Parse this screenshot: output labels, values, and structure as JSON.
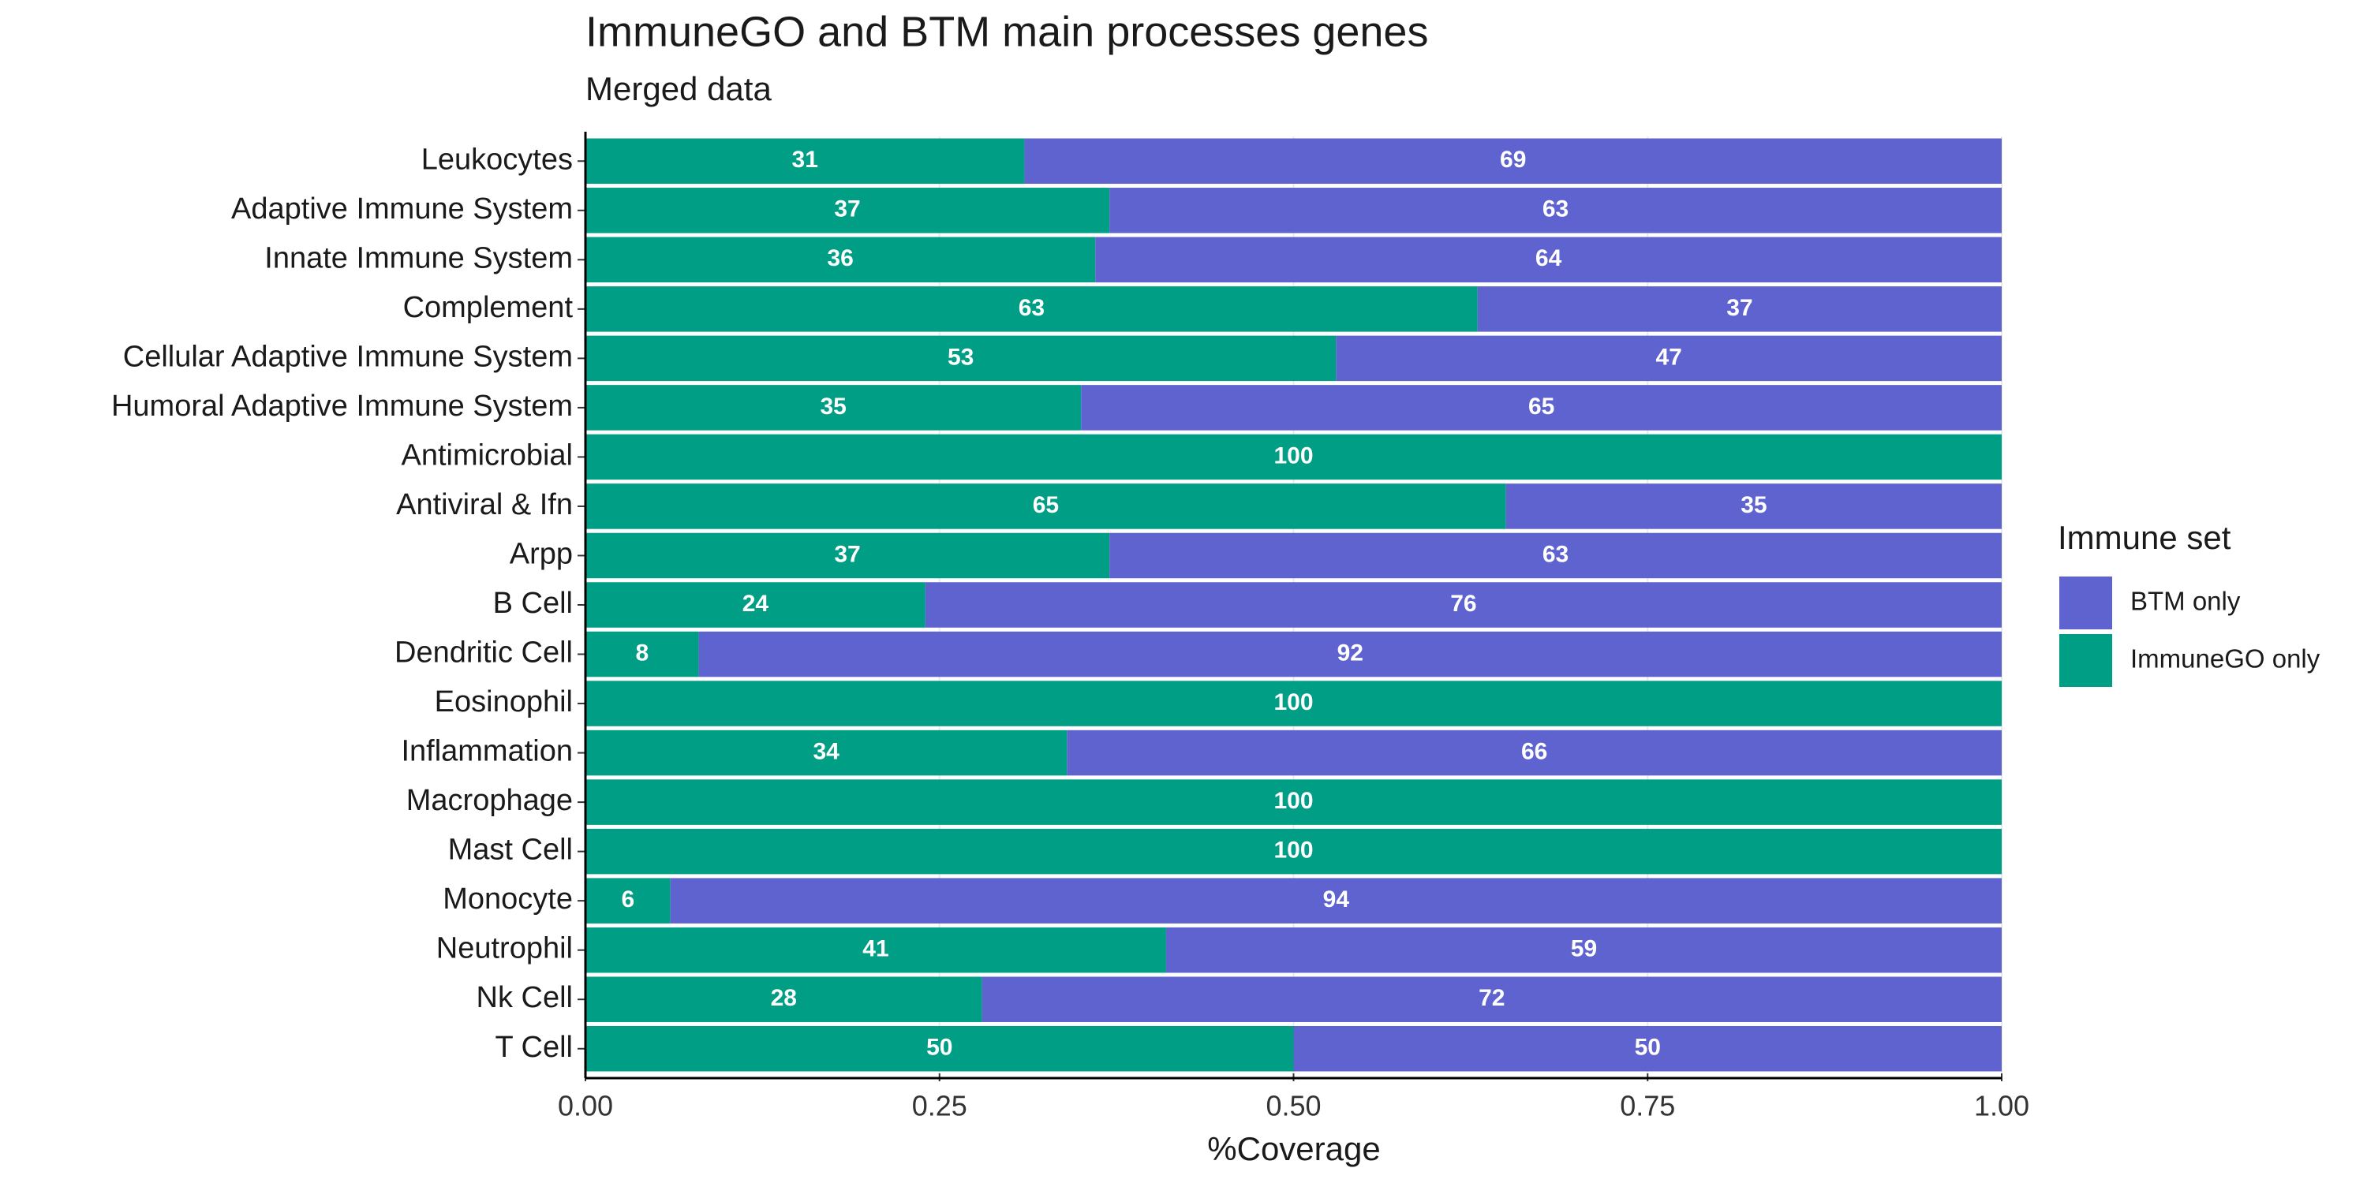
{
  "chart_data": {
    "type": "stacked-bar-horizontal",
    "title": "ImmuneGO and BTM main processes genes",
    "subtitle": "Merged data",
    "x_label": "%Coverage",
    "legend_title": "Immune set",
    "categories": [
      "Leukocytes",
      "Adaptive Immune System",
      "Innate Immune System",
      "Complement",
      "Cellular Adaptive Immune System",
      "Humoral Adaptive Immune System",
      "Antimicrobial",
      "Antiviral & Ifn",
      "Arpp",
      "B Cell",
      "Dendritic Cell",
      "Eosinophil",
      "Inflammation",
      "Macrophage",
      "Mast Cell",
      "Monocyte",
      "Neutrophil",
      "Nk Cell",
      "T Cell"
    ],
    "series": [
      {
        "name": "ImmuneGO only",
        "color": "#009e85",
        "values": [
          0.31,
          0.37,
          0.36,
          0.63,
          0.53,
          0.35,
          1.0,
          0.65,
          0.37,
          0.24,
          0.08,
          1.0,
          0.34,
          1.0,
          1.0,
          0.06,
          0.41,
          0.28,
          0.5
        ],
        "value_labels": [
          "31",
          "37",
          "36",
          "63",
          "53",
          "35",
          "100",
          "65",
          "37",
          "24",
          "8",
          "100",
          "34",
          "100",
          "100",
          "6",
          "41",
          "28",
          "50"
        ]
      },
      {
        "name": "BTM only",
        "color": "#5f63cf",
        "values": [
          0.69,
          0.63,
          0.64,
          0.37,
          0.47,
          0.65,
          0,
          0.35,
          0.63,
          0.76,
          0.92,
          0,
          0.66,
          0,
          0,
          0.94,
          0.59,
          0.72,
          0.5
        ],
        "value_labels": [
          "69",
          "63",
          "64",
          "37",
          "47",
          "65",
          null,
          "35",
          "63",
          "76",
          "92",
          null,
          "66",
          null,
          null,
          "94",
          "59",
          "72",
          "50"
        ]
      }
    ],
    "xlim": [
      0,
      1
    ],
    "xticks": [
      {
        "value": 0,
        "label": "0.00"
      },
      {
        "value": 0.25,
        "label": "0.25"
      },
      {
        "value": 0.5,
        "label": "0.50"
      },
      {
        "value": 0.75,
        "label": "0.75"
      },
      {
        "value": 1,
        "label": "1.00"
      }
    ],
    "grid": true
  }
}
